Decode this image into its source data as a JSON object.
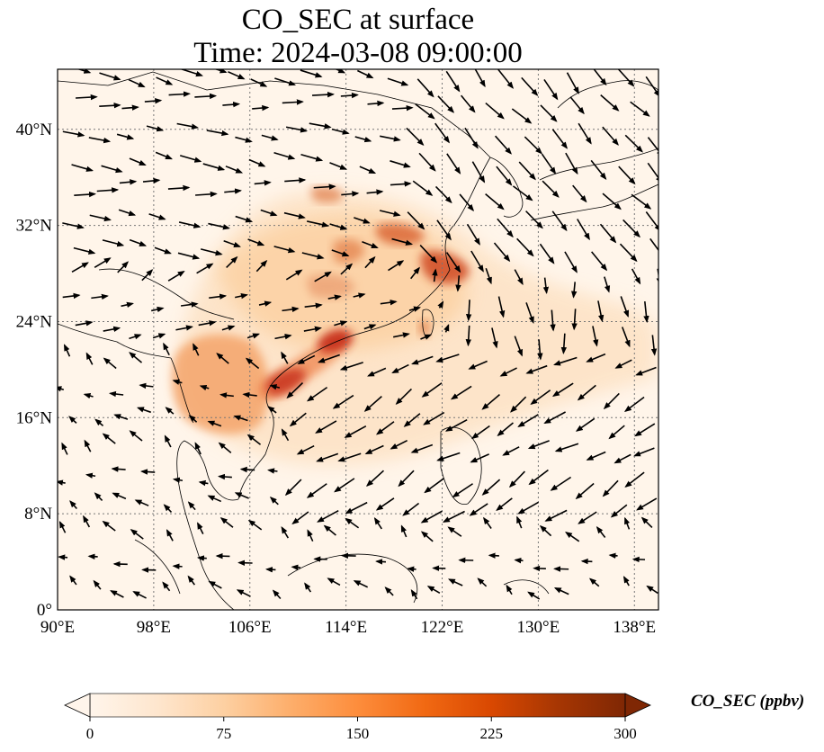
{
  "title": {
    "line1": "CO_SEC at surface",
    "line2": "Time: 2024-03-08 09:00:00"
  },
  "map": {
    "lon_range": [
      90,
      140
    ],
    "lat_range": [
      0,
      45
    ],
    "lon_ticks": [
      "90°E",
      "98°E",
      "106°E",
      "114°E",
      "122°E",
      "130°E",
      "138°E"
    ],
    "lat_ticks": [
      "0°",
      "8°N",
      "16°N",
      "24°N",
      "32°N",
      "40°N"
    ],
    "gridlines": "dotted",
    "overlay": "wind vectors (black arrows)"
  },
  "colorbar": {
    "label": "CO_SEC (ppbv)",
    "min": 0,
    "max": 300,
    "ticks": [
      "0",
      "75",
      "150",
      "225",
      "300"
    ],
    "colormap": [
      "#fff5eb",
      "#fee6ce",
      "#fdd0a2",
      "#fdae6b",
      "#fd8d3c",
      "#f16913",
      "#d94801",
      "#a63603",
      "#7f2704"
    ],
    "extend": "both"
  }
}
